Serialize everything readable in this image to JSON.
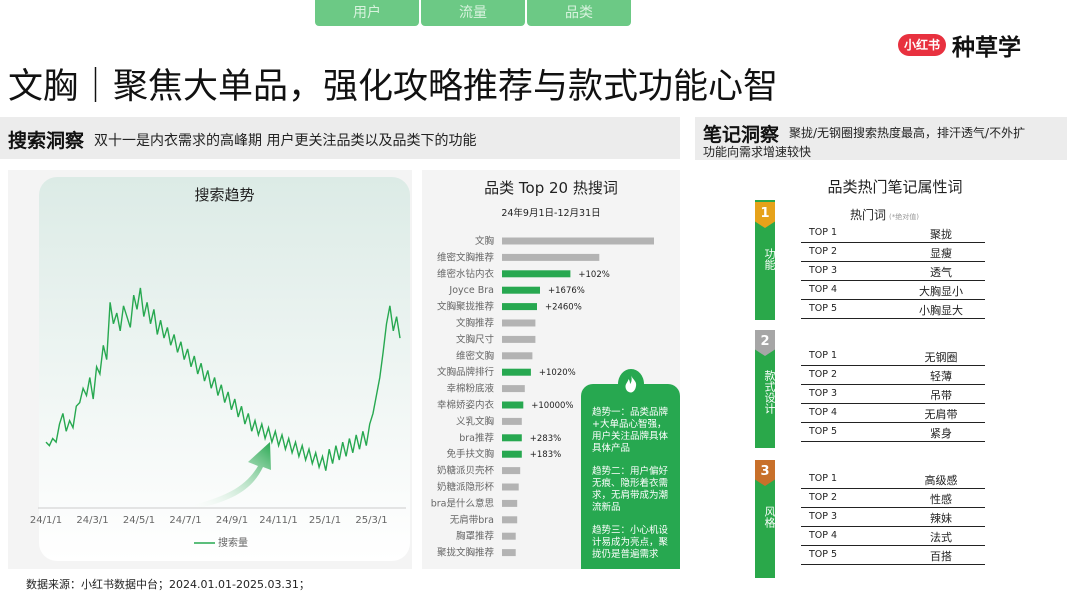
{
  "tabs": [
    "用户",
    "流量",
    "品类"
  ],
  "logo": {
    "badge": "小红书",
    "text": "种草学"
  },
  "title": "文胸｜聚焦大单品，强化攻略推荐与款式功能心智",
  "search_section": {
    "heading": "搜索洞察",
    "text": "双十一是内衣需求的高峰期  用户更关注品类以及品类下的功能"
  },
  "note_section": {
    "heading": "笔记洞察",
    "text_line1": "聚拢/无钢圈搜索热度最高，排汗透气/不外扩",
    "text_line2": "功能向需求增速较快"
  },
  "trend_chart_title": "搜索趋势",
  "top20_title": "品类 Top 20 热搜词",
  "top20_date": "24年9月1日-12月31日",
  "trend_insights": [
    "趋势一：品类品牌+大单品心智强，用户关注品牌具体具体产品",
    "趋势二：用户偏好无痕、隐形着衣需求，无肩带成为潮流新品",
    "趋势三：小心机设计易成为亮点，聚拢仍是普遍需求"
  ],
  "notes_title": "品类热门笔记属性词",
  "hot_words_label": "热门词",
  "hot_words_note": "(*绝对值)",
  "categories": [
    {
      "num": "1",
      "label": "功能",
      "badge_color": "#e6a21a",
      "items": [
        {
          "rank": "TOP 1",
          "word": "聚拢"
        },
        {
          "rank": "TOP 2",
          "word": "显瘦"
        },
        {
          "rank": "TOP 3",
          "word": "透气"
        },
        {
          "rank": "TOP 4",
          "word": "大胸显小"
        },
        {
          "rank": "TOP 5",
          "word": "小胸显大"
        }
      ]
    },
    {
      "num": "2",
      "label": "款式设计",
      "badge_color": "#a6a6a6",
      "items": [
        {
          "rank": "TOP 1",
          "word": "无钢圈"
        },
        {
          "rank": "TOP 2",
          "word": "轻薄"
        },
        {
          "rank": "TOP 3",
          "word": "吊带"
        },
        {
          "rank": "TOP 4",
          "word": "无肩带"
        },
        {
          "rank": "TOP 5",
          "word": "紧身"
        }
      ]
    },
    {
      "num": "3",
      "label": "风格",
      "badge_color": "#c8702a",
      "items": [
        {
          "rank": "TOP 1",
          "word": "高级感"
        },
        {
          "rank": "TOP 2",
          "word": "性感"
        },
        {
          "rank": "TOP 3",
          "word": "辣妹"
        },
        {
          "rank": "TOP 4",
          "word": "法式"
        },
        {
          "rank": "TOP 5",
          "word": "百搭"
        }
      ]
    }
  ],
  "footer": "数据来源：小红书数据中台；2024.01.01-2025.03.31；",
  "colors": {
    "green": "#27a850",
    "grey_bar": "#b3b3b3"
  },
  "chart_data": [
    {
      "type": "line",
      "title": "搜索趋势",
      "xlabel": "",
      "ylabel": "",
      "x_ticks": [
        "24/1/1",
        "24/3/1",
        "24/5/1",
        "24/7/1",
        "24/9/1",
        "24/11/1",
        "25/1/1",
        "25/3/1"
      ],
      "legend": "搜索量",
      "legend_position": "bottom",
      "series": [
        {
          "name": "搜索量",
          "values": [
            47,
            46,
            48,
            47,
            52,
            55,
            50,
            53,
            51,
            57,
            58,
            62,
            60,
            65,
            59,
            68,
            66,
            74,
            70,
            86,
            80,
            83,
            78,
            85,
            82,
            79,
            88,
            84,
            90,
            82,
            86,
            80,
            84,
            77,
            81,
            76,
            79,
            74,
            77,
            72,
            75,
            70,
            73,
            68,
            71,
            66,
            69,
            64,
            67,
            62,
            65,
            60,
            63,
            58,
            61,
            56,
            59,
            54,
            57,
            52,
            55,
            50,
            53,
            49,
            52,
            48,
            51,
            47,
            50,
            46,
            49,
            45,
            48,
            44,
            47,
            43,
            46,
            42,
            45,
            41,
            44,
            40,
            43,
            39,
            45,
            41,
            46,
            42,
            47,
            43,
            48,
            44,
            49,
            45,
            50,
            46,
            52,
            55,
            60,
            65,
            72,
            80,
            85,
            78,
            82,
            76
          ]
        }
      ]
    },
    {
      "type": "bar",
      "title": "品类 Top 20 热搜词",
      "orientation": "horizontal",
      "categories": [
        "文胸",
        "维密文胸推荐",
        "维密水钻内衣",
        "Joyce Bra",
        "文胸聚拢推荐",
        "文胸推荐",
        "文胸尺寸",
        "维密文胸",
        "文胸品牌排行",
        "幸棉粉底液",
        "幸棉娇姿内衣",
        "义乳文胸",
        "bra推荐",
        "免手扶文胸",
        "奶糖派贝壳杯",
        "奶糖派隐形杯",
        "bra是什么意思",
        "无肩带bra",
        "胸罩推荐",
        "聚拢文胸推荐"
      ],
      "values": [
        100,
        64,
        45,
        25,
        23,
        22,
        22,
        20,
        19,
        15,
        14,
        13,
        13,
        13,
        12,
        11,
        10,
        10,
        9,
        9
      ],
      "growth_labels": [
        "",
        "",
        "+102%",
        "+1676%",
        "+2460%",
        "",
        "",
        "",
        "+1020%",
        "",
        "+10000%",
        "",
        "+283%",
        "+183%",
        "",
        "",
        "",
        "",
        "",
        ""
      ],
      "highlighted": [
        false,
        false,
        true,
        true,
        true,
        false,
        false,
        false,
        true,
        false,
        true,
        false,
        true,
        true,
        false,
        false,
        false,
        false,
        false,
        false
      ]
    }
  ]
}
